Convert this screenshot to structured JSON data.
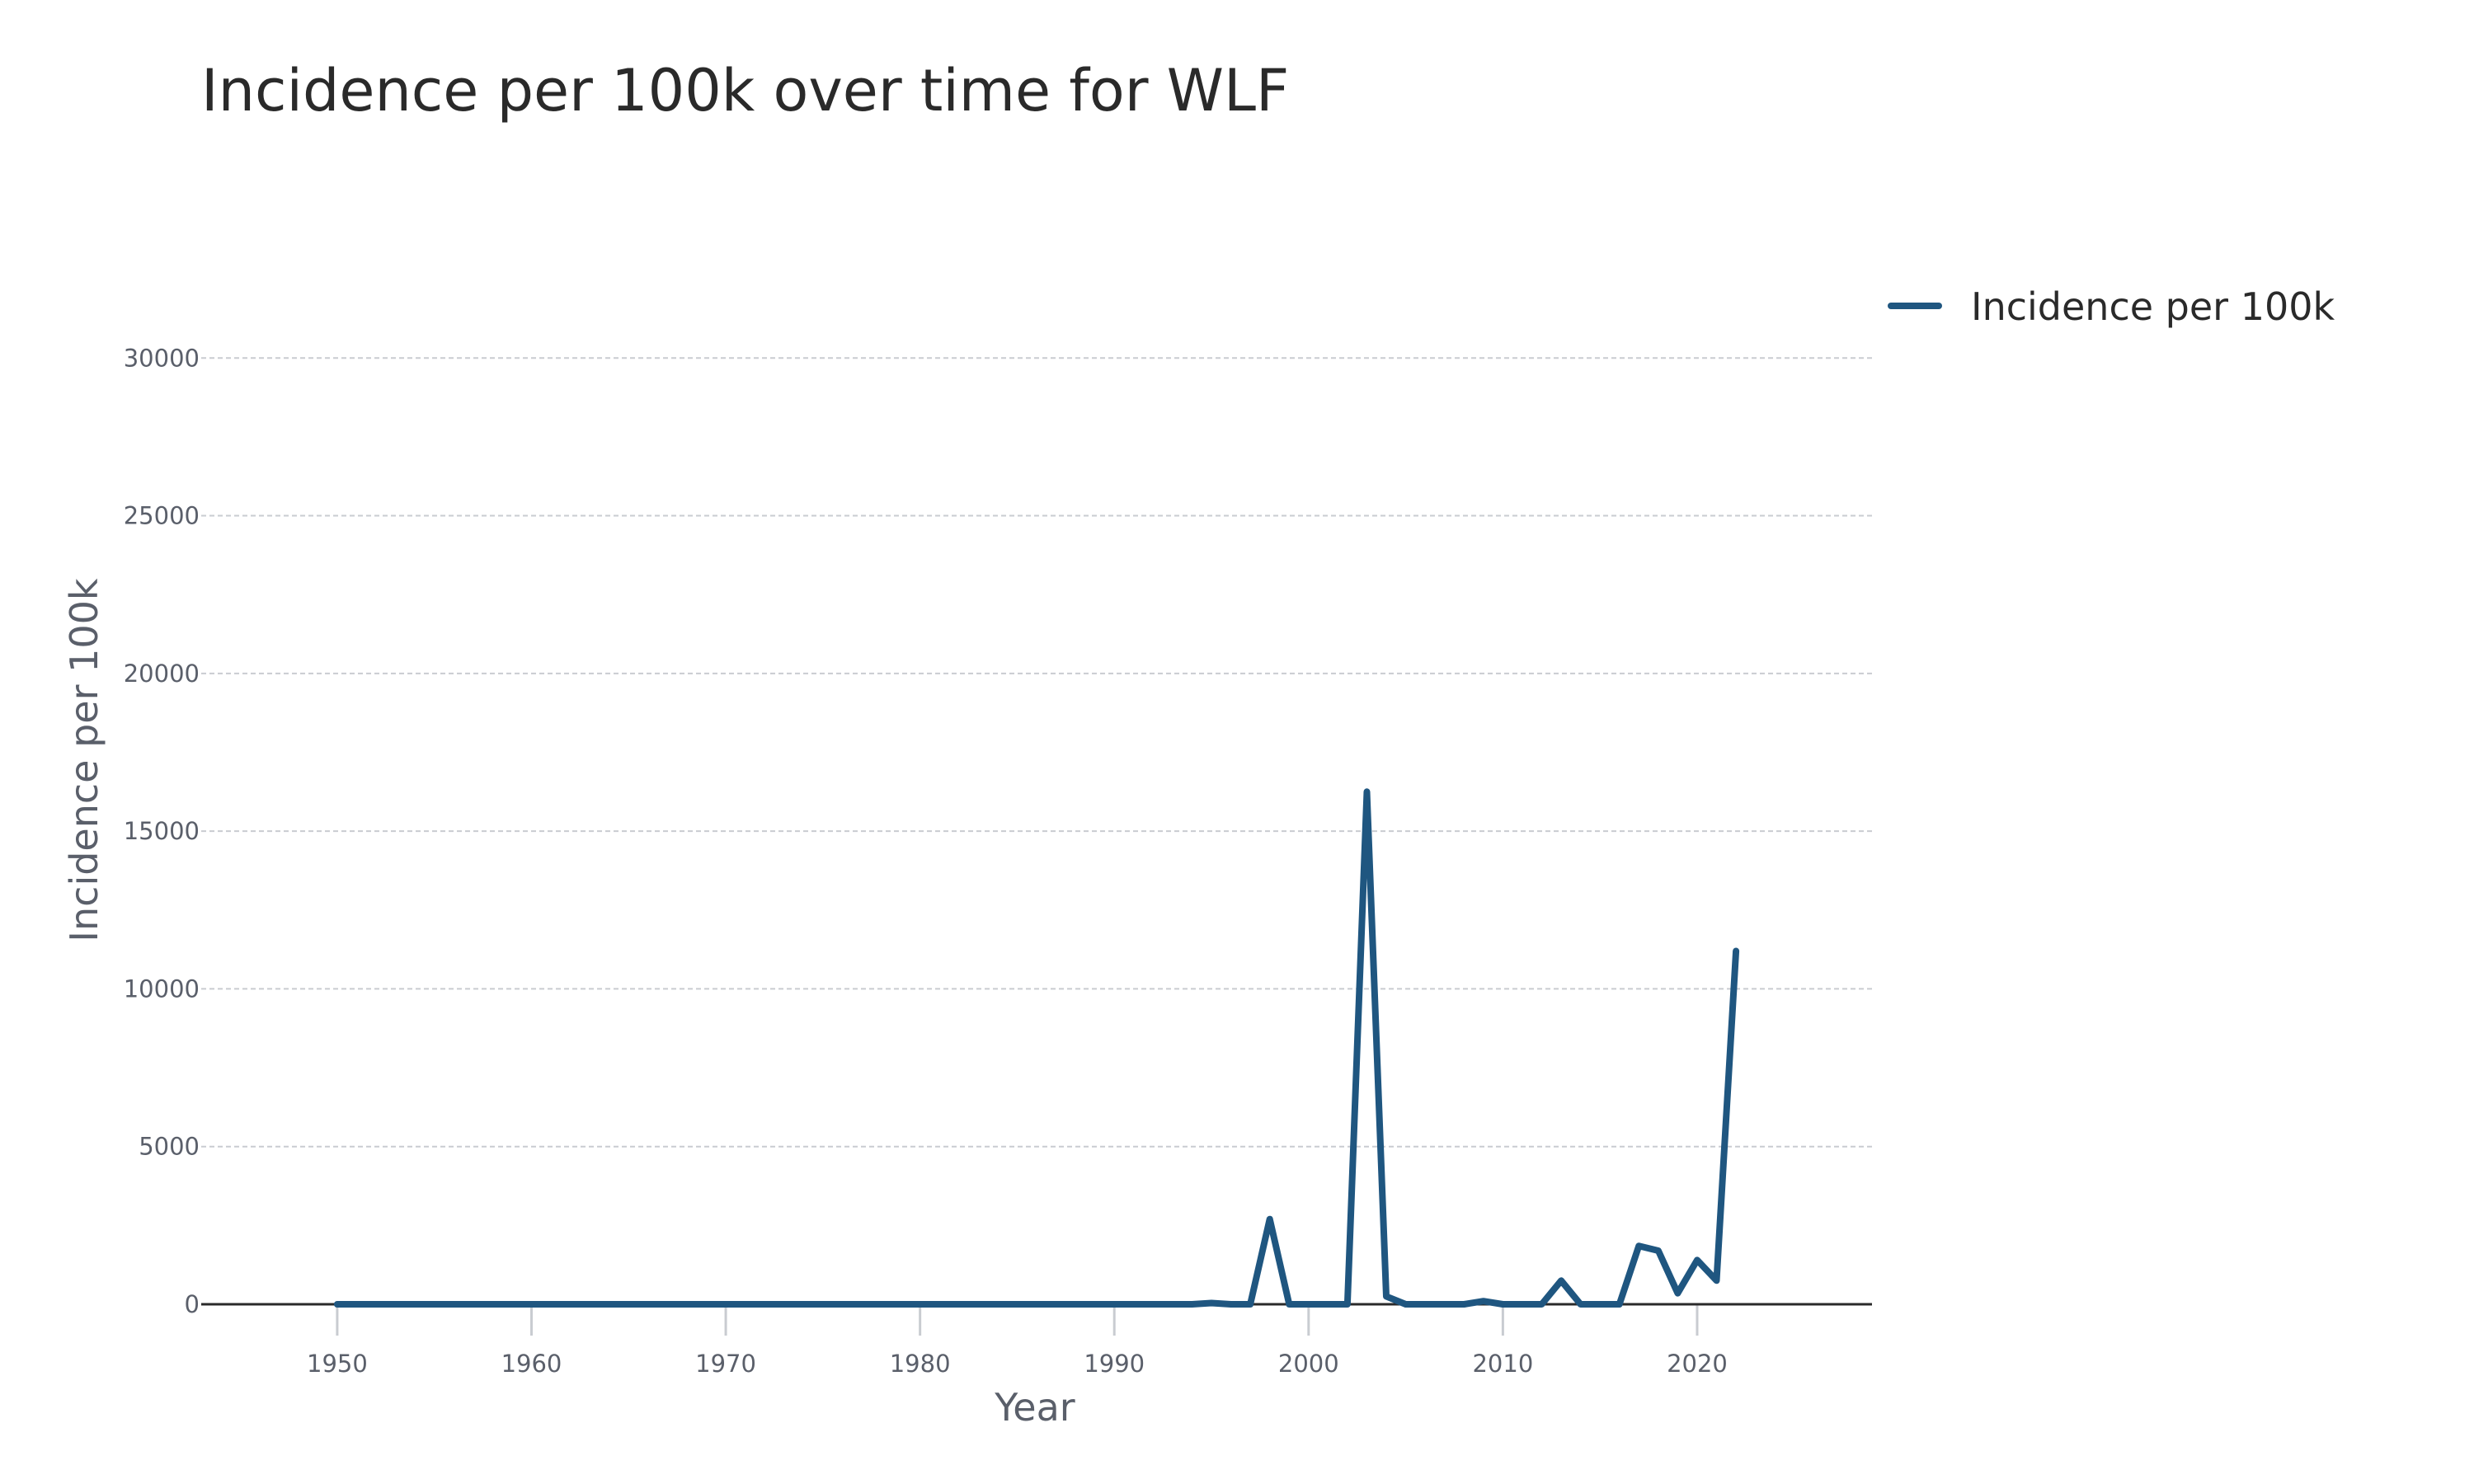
{
  "chart_data": {
    "type": "line",
    "title": "Incidence per 100k over time for WLF",
    "xlabel": "Year",
    "ylabel": "Incidence per 100k",
    "xlim": [
      1943,
      2029
    ],
    "ylim": [
      0,
      31000
    ],
    "x_ticks": [
      "1950",
      "1960",
      "1970",
      "1980",
      "1990",
      "2000",
      "2010",
      "2020"
    ],
    "y_ticks": [
      "0",
      "5000",
      "10000",
      "15000",
      "20000",
      "25000",
      "30000"
    ],
    "grid": "horizontal dashed",
    "legend_position": "top-right",
    "series": [
      {
        "name": "Incidence per 100k",
        "color": "#1f5680",
        "x": [
          1950,
          1951,
          1952,
          1953,
          1954,
          1955,
          1956,
          1957,
          1958,
          1959,
          1960,
          1961,
          1962,
          1963,
          1964,
          1965,
          1966,
          1967,
          1968,
          1969,
          1970,
          1971,
          1972,
          1973,
          1974,
          1975,
          1976,
          1977,
          1978,
          1979,
          1980,
          1981,
          1982,
          1983,
          1984,
          1985,
          1986,
          1987,
          1988,
          1989,
          1990,
          1991,
          1992,
          1993,
          1994,
          1995,
          1996,
          1997,
          1998,
          1999,
          2000,
          2001,
          2002,
          2003,
          2004,
          2005,
          2006,
          2007,
          2008,
          2009,
          2010,
          2011,
          2012,
          2013,
          2014,
          2015,
          2016,
          2017,
          2018,
          2019,
          2020,
          2021,
          2022
        ],
        "values": [
          0,
          0,
          0,
          0,
          0,
          0,
          0,
          0,
          0,
          0,
          0,
          0,
          0,
          0,
          0,
          0,
          0,
          0,
          0,
          0,
          0,
          0,
          0,
          0,
          0,
          0,
          0,
          0,
          0,
          0,
          0,
          0,
          0,
          0,
          0,
          0,
          0,
          0,
          0,
          0,
          0,
          0,
          0,
          0,
          0,
          40,
          0,
          0,
          2700,
          0,
          0,
          0,
          0,
          16250,
          250,
          0,
          0,
          0,
          0,
          100,
          0,
          0,
          0,
          750,
          0,
          0,
          0,
          1850,
          1700,
          350,
          1400,
          750,
          11200
        ]
      }
    ]
  },
  "colors": {
    "line": "#1f5680",
    "grid": "#c9ccd1",
    "tick_mark": "#c9ccd1",
    "zero_line": "#2a2a2a"
  }
}
